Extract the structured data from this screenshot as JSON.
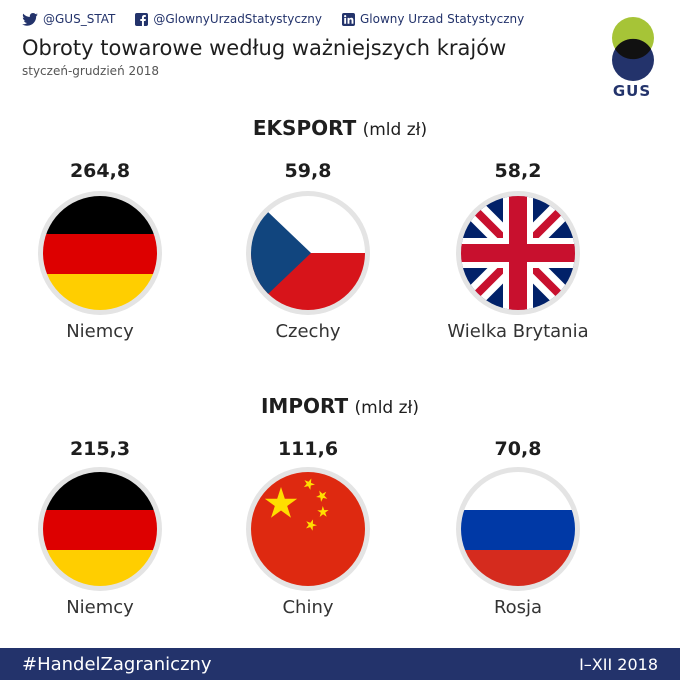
{
  "social": {
    "twitter": "@GUS_STAT",
    "facebook": "@GlownyUrzadStatystyczny",
    "linkedin": "Glowny Urzad Statystyczny"
  },
  "header": {
    "title": "Obroty towarowe według ważniejszych krajów",
    "subtitle": "styczeń-grudzień 2018",
    "logo_text": "GUS"
  },
  "export": {
    "heading": "EKSPORT",
    "unit": "(mld zł)",
    "items": [
      {
        "value": "264,8",
        "country": "Niemcy",
        "flag": "germany-flag-icon"
      },
      {
        "value": "59,8",
        "country": "Czechy",
        "flag": "czech-flag-icon"
      },
      {
        "value": "58,2",
        "country": "Wielka Brytania",
        "flag": "uk-flag-icon"
      }
    ]
  },
  "import": {
    "heading": "IMPORT",
    "unit": "(mld zł)",
    "items": [
      {
        "value": "215,3",
        "country": "Niemcy",
        "flag": "germany-flag-icon"
      },
      {
        "value": "111,6",
        "country": "Chiny",
        "flag": "china-flag-icon"
      },
      {
        "value": "70,8",
        "country": "Rosja",
        "flag": "russia-flag-icon"
      }
    ]
  },
  "footer": {
    "hashtag": "#HandelZagraniczny",
    "period": "I–XII 2018"
  },
  "colors": {
    "navy": "#23336b",
    "lime": "#a6c437"
  }
}
